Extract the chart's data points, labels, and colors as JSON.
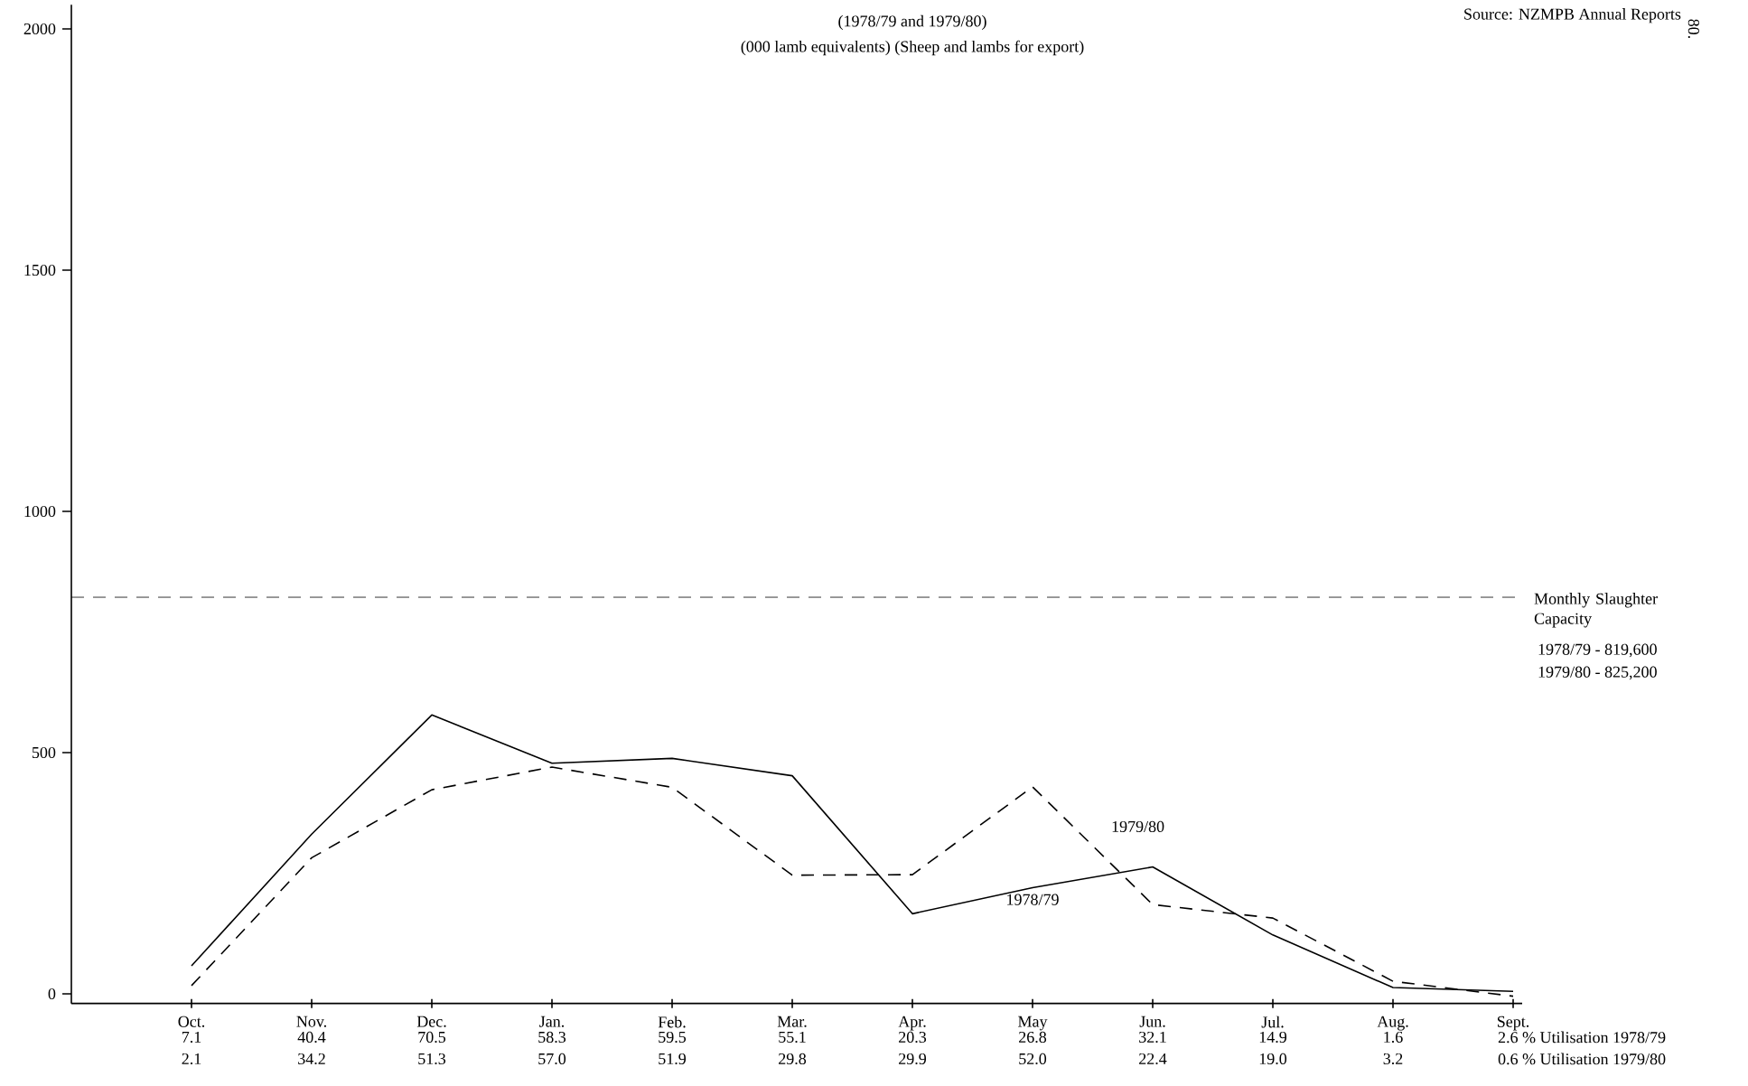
{
  "chart_data": {
    "type": "line",
    "title": "(1978/79 and 1979/80)",
    "subtitle": "(000 lamb equivalents) (Sheep and lambs for export)",
    "categories": [
      "Oct.",
      "Nov.",
      "Dec.",
      "Jan.",
      "Feb.",
      "Mar.",
      "Apr.",
      "May",
      "Jun.",
      "Jul.",
      "Aug.",
      "Sept."
    ],
    "series": [
      {
        "name": "1978/79",
        "color": "#000000",
        "line_style": "solid",
        "values": [
          58,
          331,
          578,
          478,
          488,
          452,
          166,
          220,
          263,
          122,
          13,
          5
        ]
      },
      {
        "name": "1979/80",
        "color": "#000000",
        "line_style": "dashed",
        "values": [
          17,
          282,
          423,
          470,
          428,
          246,
          247,
          429,
          185,
          157,
          26,
          -5
        ]
      }
    ],
    "ylim": [
      -20,
      2050
    ],
    "yticks": [
      0,
      500,
      1000,
      1500,
      2000
    ],
    "ref_lines": [
      {
        "axis": "y",
        "value": 822,
        "label": "Monthly Slaughter Capacity",
        "line_style": "dashed"
      }
    ],
    "annotations": [
      "Source:  NZMPB Annual Reports",
      "80.",
      "1978/79 - 819,600",
      "1979/80 - 825,200",
      "7.1",
      "40.4",
      "70.5",
      "58.3",
      "59.5",
      "55.1",
      "20.3",
      "26.8",
      "32.1",
      "14.9",
      "1.6",
      "2.6 % Utilisation 1978/79",
      "2.1",
      "34.2",
      "51.3",
      "57.0",
      "51.9",
      "29.8",
      "29.9",
      "52.0",
      "22.4",
      "19.0",
      "3.2",
      "0.6 % Utilisation 1979/80"
    ]
  }
}
